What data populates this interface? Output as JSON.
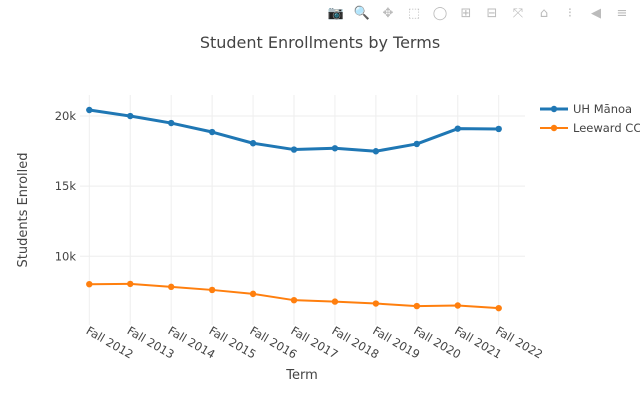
{
  "toolbar": {
    "icons": [
      "camera-icon",
      "zoom-icon",
      "pan-icon",
      "box-select-icon",
      "lasso-select-icon",
      "zoom-in-icon",
      "zoom-out-icon",
      "autoscale-icon",
      "reset-axes-icon",
      "spike-lines-icon",
      "hover-closest-icon",
      "hover-compare-icon",
      "plotly-logo-icon"
    ]
  },
  "chart_data": {
    "type": "line",
    "title": "Student Enrollments by Terms",
    "xlabel": "Term",
    "ylabel": "Students Enrolled",
    "categories": [
      "Fall 2012",
      "Fall 2013",
      "Fall 2014",
      "Fall 2015",
      "Fall 2016",
      "Fall 2017",
      "Fall 2018",
      "Fall 2019",
      "Fall 2020",
      "Fall 2021",
      "Fall 2022"
    ],
    "ylim": [
      5100,
      21500
    ],
    "yticks": [
      10000,
      15000,
      20000
    ],
    "ytick_labels": [
      "10k",
      "15k",
      "20k"
    ],
    "grid": true,
    "legend_position": "top-right",
    "series": [
      {
        "name": "UH Mānoa",
        "color": "#1f77b4",
        "values": [
          20430,
          20000,
          19500,
          18860,
          18060,
          17610,
          17700,
          17490,
          18010,
          19100,
          19080
        ]
      },
      {
        "name": "Leeward CC",
        "color": "#ff7f0e",
        "values": [
          8010,
          8030,
          7820,
          7600,
          7320,
          6870,
          6770,
          6630,
          6450,
          6490,
          6300
        ]
      }
    ]
  }
}
